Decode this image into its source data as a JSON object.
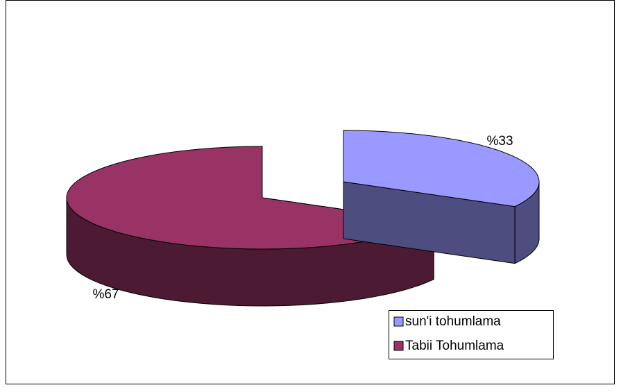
{
  "chart_data": {
    "type": "pie3d",
    "categories": [
      "sun'i tohumlama",
      "Tabii Tohumlama"
    ],
    "values": [
      33,
      67
    ],
    "value_labels": [
      "%33",
      "%67"
    ],
    "colors": [
      "#9999ff",
      "#993366"
    ],
    "legend": "bottom-right"
  }
}
